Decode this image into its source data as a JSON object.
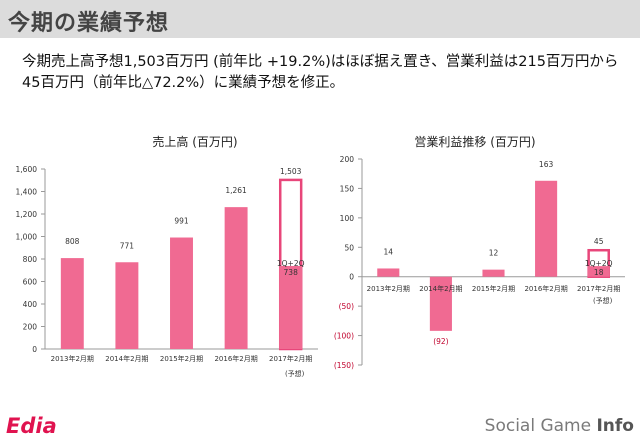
{
  "page": {
    "title": "今期の業績予想",
    "description_line1": "今期売上高予想1,503百万円 (前年比 +19.2%)はほぼ据え置き、営業利益は215百万円から",
    "description_line2": "45百万円（前年比△72.2%）に業績予想を修正。",
    "logo": "Edia",
    "brand_left": "Social Game ",
    "brand_right": "Info"
  },
  "colors": {
    "bar": "#f06a92",
    "bar_outline": "#e8467a",
    "axis": "#9a9a9a",
    "grid": "#d6d6d6"
  },
  "chart_data": [
    {
      "type": "bar",
      "title": "売上高 (百万円)",
      "categories": [
        "2013年2月期",
        "2014年2月期",
        "2015年2月期",
        "2016年2月期",
        "2017年2月期"
      ],
      "category_note": "(予想)",
      "values": [
        808,
        771,
        991,
        1261,
        738
      ],
      "data_labels": [
        "808",
        "771",
        "991",
        "1,261",
        "738"
      ],
      "forecast": {
        "category_index": 4,
        "total": 1503,
        "total_label": "1,503",
        "partial_label": "1Q+2Q"
      },
      "ylim": [
        0,
        1600
      ],
      "yticks": [
        0,
        200,
        400,
        600,
        800,
        1000,
        1200,
        1400,
        1600
      ],
      "ytick_labels": [
        "0",
        "200",
        "400",
        "600",
        "800",
        "1,000",
        "1,200",
        "1,400",
        "1,600"
      ],
      "grid": false
    },
    {
      "type": "bar",
      "title": "営業利益推移 (百万円)",
      "categories": [
        "2013年2月期",
        "2014年2月期",
        "2015年2月期",
        "2016年2月期",
        "2017年2月期"
      ],
      "category_note": "(予想)",
      "values": [
        14,
        -92,
        12,
        163,
        18
      ],
      "data_labels": [
        "14",
        "(92)",
        "12",
        "163",
        "18"
      ],
      "forecast": {
        "category_index": 4,
        "total": 45,
        "total_label": "45",
        "partial_label": "1Q+2Q"
      },
      "ylim": [
        -150,
        200
      ],
      "yticks": [
        -150,
        -100,
        -50,
        0,
        50,
        100,
        150,
        200
      ],
      "ytick_labels": [
        "(150)",
        "(100)",
        "(50)",
        "0",
        "50",
        "100",
        "150",
        "200"
      ],
      "grid": false
    }
  ]
}
